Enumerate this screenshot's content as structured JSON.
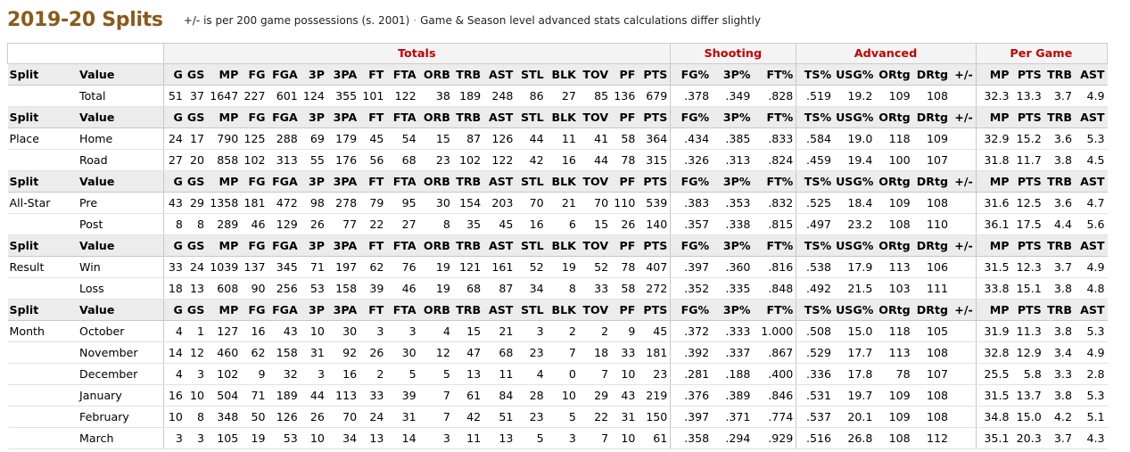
{
  "header": {
    "title": "2019-20 Splits",
    "note1": "+/- is per 200 game possessions (s. 2001)",
    "separator": "·",
    "note2": "Game & Season level advanced stats calculations differ slightly"
  },
  "over_header": [
    "Totals",
    "Shooting",
    "Advanced",
    "Per Game"
  ],
  "columns": [
    "Split",
    "Value",
    "G",
    "GS",
    "MP",
    "FG",
    "FGA",
    "3P",
    "3PA",
    "FT",
    "FTA",
    "ORB",
    "TRB",
    "AST",
    "STL",
    "BLK",
    "TOV",
    "PF",
    "PTS",
    "FG%",
    "3P%",
    "FT%",
    "TS%",
    "USG%",
    "ORtg",
    "DRtg",
    "+/-",
    "MP",
    "PTS",
    "TRB",
    "AST"
  ],
  "groups": [
    {
      "split": "",
      "showHeader": false,
      "rows": [
        [
          "Total",
          "51",
          "37",
          "1647",
          "227",
          "601",
          "124",
          "355",
          "101",
          "122",
          "38",
          "189",
          "248",
          "86",
          "27",
          "85",
          "136",
          "679",
          ".378",
          ".349",
          ".828",
          ".519",
          "19.2",
          "109",
          "108",
          "",
          "32.3",
          "13.3",
          "3.7",
          "4.9"
        ]
      ]
    },
    {
      "split": "Place",
      "showHeader": true,
      "rows": [
        [
          "Home",
          "24",
          "17",
          "790",
          "125",
          "288",
          "69",
          "179",
          "45",
          "54",
          "15",
          "87",
          "126",
          "44",
          "11",
          "41",
          "58",
          "364",
          ".434",
          ".385",
          ".833",
          ".584",
          "19.0",
          "118",
          "109",
          "",
          "32.9",
          "15.2",
          "3.6",
          "5.3"
        ],
        [
          "Road",
          "27",
          "20",
          "858",
          "102",
          "313",
          "55",
          "176",
          "56",
          "68",
          "23",
          "102",
          "122",
          "42",
          "16",
          "44",
          "78",
          "315",
          ".326",
          ".313",
          ".824",
          ".459",
          "19.4",
          "100",
          "107",
          "",
          "31.8",
          "11.7",
          "3.8",
          "4.5"
        ]
      ]
    },
    {
      "split": "All-Star",
      "showHeader": true,
      "rows": [
        [
          "Pre",
          "43",
          "29",
          "1358",
          "181",
          "472",
          "98",
          "278",
          "79",
          "95",
          "30",
          "154",
          "203",
          "70",
          "21",
          "70",
          "110",
          "539",
          ".383",
          ".353",
          ".832",
          ".525",
          "18.4",
          "109",
          "108",
          "",
          "31.6",
          "12.5",
          "3.6",
          "4.7"
        ],
        [
          "Post",
          "8",
          "8",
          "289",
          "46",
          "129",
          "26",
          "77",
          "22",
          "27",
          "8",
          "35",
          "45",
          "16",
          "6",
          "15",
          "26",
          "140",
          ".357",
          ".338",
          ".815",
          ".497",
          "23.2",
          "108",
          "110",
          "",
          "36.1",
          "17.5",
          "4.4",
          "5.6"
        ]
      ]
    },
    {
      "split": "Result",
      "showHeader": true,
      "rows": [
        [
          "Win",
          "33",
          "24",
          "1039",
          "137",
          "345",
          "71",
          "197",
          "62",
          "76",
          "19",
          "121",
          "161",
          "52",
          "19",
          "52",
          "78",
          "407",
          ".397",
          ".360",
          ".816",
          ".538",
          "17.9",
          "113",
          "106",
          "",
          "31.5",
          "12.3",
          "3.7",
          "4.9"
        ],
        [
          "Loss",
          "18",
          "13",
          "608",
          "90",
          "256",
          "53",
          "158",
          "39",
          "46",
          "19",
          "68",
          "87",
          "34",
          "8",
          "33",
          "58",
          "272",
          ".352",
          ".335",
          ".848",
          ".492",
          "21.5",
          "103",
          "111",
          "",
          "33.8",
          "15.1",
          "3.8",
          "4.8"
        ]
      ]
    },
    {
      "split": "Month",
      "showHeader": true,
      "rows": [
        [
          "October",
          "4",
          "1",
          "127",
          "16",
          "43",
          "10",
          "30",
          "3",
          "3",
          "4",
          "15",
          "21",
          "3",
          "2",
          "2",
          "9",
          "45",
          ".372",
          ".333",
          "1.000",
          ".508",
          "15.0",
          "118",
          "105",
          "",
          "31.9",
          "11.3",
          "3.8",
          "5.3"
        ],
        [
          "November",
          "14",
          "12",
          "460",
          "62",
          "158",
          "31",
          "92",
          "26",
          "30",
          "12",
          "47",
          "68",
          "23",
          "7",
          "18",
          "33",
          "181",
          ".392",
          ".337",
          ".867",
          ".529",
          "17.7",
          "113",
          "108",
          "",
          "32.8",
          "12.9",
          "3.4",
          "4.9"
        ],
        [
          "December",
          "4",
          "3",
          "102",
          "9",
          "32",
          "3",
          "16",
          "2",
          "5",
          "5",
          "13",
          "11",
          "4",
          "0",
          "7",
          "10",
          "23",
          ".281",
          ".188",
          ".400",
          ".336",
          "17.8",
          "78",
          "107",
          "",
          "25.5",
          "5.8",
          "3.3",
          "2.8"
        ],
        [
          "January",
          "16",
          "10",
          "504",
          "71",
          "189",
          "44",
          "113",
          "33",
          "39",
          "7",
          "61",
          "84",
          "28",
          "10",
          "29",
          "43",
          "219",
          ".376",
          ".389",
          ".846",
          ".531",
          "19.7",
          "109",
          "108",
          "",
          "31.5",
          "13.7",
          "3.8",
          "5.3"
        ],
        [
          "February",
          "10",
          "8",
          "348",
          "50",
          "126",
          "26",
          "70",
          "24",
          "31",
          "7",
          "42",
          "51",
          "23",
          "5",
          "22",
          "31",
          "150",
          ".397",
          ".371",
          ".774",
          ".537",
          "20.1",
          "109",
          "108",
          "",
          "34.8",
          "15.0",
          "4.2",
          "5.1"
        ],
        [
          "March",
          "3",
          "3",
          "105",
          "19",
          "53",
          "10",
          "34",
          "13",
          "14",
          "3",
          "11",
          "13",
          "5",
          "3",
          "7",
          "10",
          "61",
          ".358",
          ".294",
          ".929",
          ".516",
          "26.8",
          "108",
          "112",
          "",
          "35.1",
          "20.3",
          "3.7",
          "4.3"
        ]
      ]
    }
  ]
}
